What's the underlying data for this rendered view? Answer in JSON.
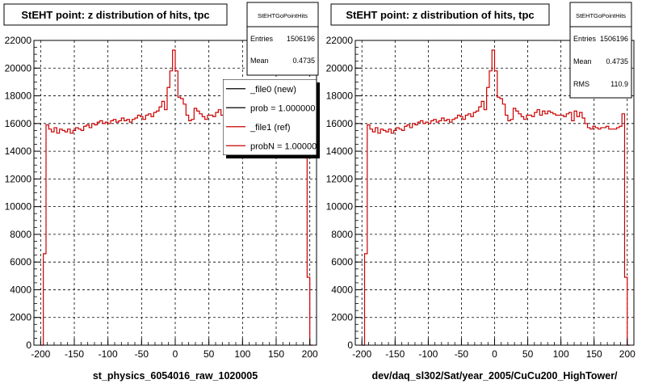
{
  "charts": [
    {
      "title": "StEHT point: z distribution of hits, tpc",
      "xlabel": "st_physics_6054016_raw_1020005",
      "stats": {
        "name": "StEHTGoPointHits",
        "rows": [
          {
            "label": "Entries",
            "value": "1506196"
          },
          {
            "label": "Mean",
            "value": "0.4735"
          }
        ]
      },
      "legend": [
        {
          "label": "_file0 (new)",
          "color": "#000000"
        },
        {
          "label": "prob = 1.000000",
          "color": "#000000"
        },
        {
          "label": "_file1 (ref)",
          "color": "#cc0000"
        },
        {
          "label": "probN = 1.000000",
          "color": "#cc0000"
        }
      ]
    },
    {
      "title": "StEHT point: z distribution of hits, tpc",
      "xlabel": "dev/daq_sl302/Sat/year_2005/CuCu200_HighTower/",
      "stats": {
        "name": "StEHTGoPointHits",
        "rows": [
          {
            "label": "Entries",
            "value": "1506196"
          },
          {
            "label": "Mean",
            "value": "0.4735"
          },
          {
            "label": "RMS",
            "value": "110.9"
          }
        ]
      },
      "legend": []
    }
  ],
  "chart_data": [
    {
      "type": "line",
      "title": "StEHT point: z distribution of hits, tpc",
      "xlabel": "st_physics_6054016_raw_1020005",
      "ylabel": "",
      "xlim": [
        -210,
        210
      ],
      "ylim": [
        0,
        22000
      ],
      "xticks": [
        -200,
        -150,
        -100,
        -50,
        0,
        50,
        100,
        150,
        200
      ],
      "yticks": [
        0,
        2000,
        4000,
        6000,
        8000,
        10000,
        12000,
        14000,
        16000,
        18000,
        20000,
        22000
      ],
      "grid": true,
      "legend_position": "top-right",
      "series": [
        {
          "name": "_file1 (ref)",
          "color": "#cc0000",
          "x": [
            -200,
            -196,
            -192,
            -188,
            -184,
            -180,
            -176,
            -172,
            -168,
            -164,
            -160,
            -156,
            -152,
            -148,
            -144,
            -140,
            -136,
            -132,
            -128,
            -124,
            -120,
            -116,
            -112,
            -108,
            -104,
            -100,
            -96,
            -92,
            -88,
            -84,
            -80,
            -76,
            -72,
            -68,
            -64,
            -60,
            -56,
            -52,
            -48,
            -44,
            -40,
            -36,
            -32,
            -28,
            -24,
            -20,
            -16,
            -12,
            -8,
            -4,
            0,
            4,
            8,
            12,
            16,
            20,
            24,
            28,
            32,
            36,
            40,
            44,
            48,
            52,
            56,
            60,
            64,
            68,
            72,
            76,
            80,
            84,
            88,
            92,
            96,
            100,
            104,
            108,
            112,
            116,
            120,
            124,
            128,
            132,
            136,
            140,
            144,
            148,
            152,
            156,
            160,
            164,
            168,
            172,
            176,
            180,
            184,
            188,
            192,
            196,
            200
          ],
          "y": [
            0,
            6600,
            15900,
            15600,
            15400,
            15700,
            15300,
            15600,
            15500,
            15400,
            15600,
            15300,
            15500,
            15700,
            15600,
            15500,
            15800,
            15900,
            15700,
            16000,
            15900,
            16100,
            16200,
            16000,
            16100,
            16000,
            16200,
            16300,
            16100,
            16200,
            16400,
            16200,
            16300,
            16100,
            16300,
            16400,
            16600,
            16500,
            16300,
            16600,
            16700,
            16500,
            16800,
            16900,
            17200,
            17600,
            17000,
            18600,
            19800,
            21300,
            19800,
            17900,
            17800,
            17400,
            16600,
            16200,
            16300,
            17100,
            16900,
            16700,
            16500,
            16300,
            16600,
            16600,
            16500,
            16800,
            17000,
            16600,
            16900,
            16700,
            16900,
            16800,
            16700,
            16600,
            16600,
            16600,
            16500,
            16700,
            16800,
            16200,
            16900,
            16500,
            16800,
            16400,
            16000,
            15700,
            15600,
            15800,
            15700,
            15600,
            15700,
            15700,
            15800,
            15600,
            15600,
            15600,
            15700,
            15800,
            16700,
            4900,
            0
          ]
        }
      ]
    },
    {
      "type": "line",
      "title": "StEHT point: z distribution of hits, tpc",
      "xlabel": "dev/daq_sl302/Sat/year_2005/CuCu200_HighTower/",
      "ylabel": "",
      "xlim": [
        -210,
        210
      ],
      "ylim": [
        0,
        22000
      ],
      "xticks": [
        -200,
        -150,
        -100,
        -50,
        0,
        50,
        100,
        150,
        200
      ],
      "yticks": [
        0,
        2000,
        4000,
        6000,
        8000,
        10000,
        12000,
        14000,
        16000,
        18000,
        20000,
        22000
      ],
      "grid": true,
      "series": [
        {
          "name": "",
          "color": "#cc0000",
          "x": [
            -200,
            -196,
            -192,
            -188,
            -184,
            -180,
            -176,
            -172,
            -168,
            -164,
            -160,
            -156,
            -152,
            -148,
            -144,
            -140,
            -136,
            -132,
            -128,
            -124,
            -120,
            -116,
            -112,
            -108,
            -104,
            -100,
            -96,
            -92,
            -88,
            -84,
            -80,
            -76,
            -72,
            -68,
            -64,
            -60,
            -56,
            -52,
            -48,
            -44,
            -40,
            -36,
            -32,
            -28,
            -24,
            -20,
            -16,
            -12,
            -8,
            -4,
            0,
            4,
            8,
            12,
            16,
            20,
            24,
            28,
            32,
            36,
            40,
            44,
            48,
            52,
            56,
            60,
            64,
            68,
            72,
            76,
            80,
            84,
            88,
            92,
            96,
            100,
            104,
            108,
            112,
            116,
            120,
            124,
            128,
            132,
            136,
            140,
            144,
            148,
            152,
            156,
            160,
            164,
            168,
            172,
            176,
            180,
            184,
            188,
            192,
            196,
            200
          ],
          "y": [
            0,
            6600,
            15900,
            15600,
            15400,
            15700,
            15300,
            15600,
            15500,
            15400,
            15600,
            15300,
            15500,
            15700,
            15600,
            15500,
            15800,
            15900,
            15700,
            16000,
            15900,
            16100,
            16200,
            16000,
            16100,
            16000,
            16200,
            16300,
            16100,
            16200,
            16400,
            16200,
            16300,
            16100,
            16300,
            16400,
            16600,
            16500,
            16300,
            16600,
            16700,
            16500,
            16800,
            16900,
            17200,
            17600,
            17000,
            18600,
            19800,
            21300,
            19800,
            17900,
            17800,
            17400,
            16600,
            16200,
            16300,
            17100,
            16900,
            16700,
            16500,
            16300,
            16600,
            16600,
            16500,
            16800,
            17000,
            16600,
            16900,
            16700,
            16900,
            16800,
            16700,
            16600,
            16600,
            16600,
            16500,
            16700,
            16800,
            16200,
            16900,
            16500,
            16800,
            16400,
            16000,
            15700,
            15600,
            15800,
            15700,
            15600,
            15700,
            15700,
            15800,
            15600,
            15600,
            15600,
            15700,
            15800,
            16700,
            4900,
            0
          ]
        }
      ]
    }
  ]
}
